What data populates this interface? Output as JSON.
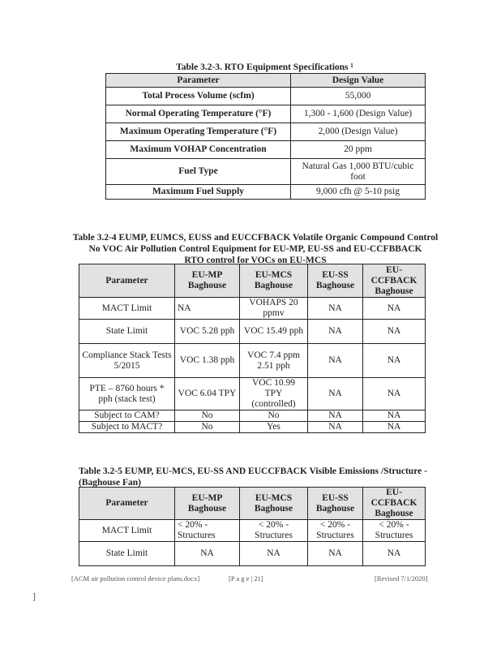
{
  "table1": {
    "caption": "Table 3.2-3.  RTO Equipment Specifications ¹",
    "headers": [
      "Parameter",
      "Design Value"
    ],
    "rows": [
      [
        "Total Process Volume (scfm)",
        "55,000"
      ],
      [
        "Normal Operating Temperature (°F)",
        "1,300 - 1,600 (Design Value)"
      ],
      [
        "Maximum Operating Temperature (°F)",
        "2,000 (Design Value)"
      ],
      [
        "Maximum VOHAP Concentration",
        "20 ppm"
      ],
      [
        "Fuel Type",
        "Natural Gas 1,000 BTU/cubic foot"
      ],
      [
        "Maximum Fuel Supply",
        "9,000 cfh @ 5-10 psig"
      ]
    ]
  },
  "table2": {
    "caption_lines": [
      "Table 3.2-4  EUMP, EUMCS, EUSS and EUCCFBACK Volatile Organic Compound Control",
      "No VOC Air Pollution Control Equipment for EU-MP, EU-SS and EU-CCFBBACK",
      "RTO control for VOCs on EU-MCS"
    ],
    "headers": [
      "Parameter",
      "EU-MP Baghouse",
      "EU-MCS Baghouse",
      "EU-SS Baghouse",
      "EU-CCFBACK Baghouse"
    ],
    "rows": [
      [
        "MACT Limit",
        "NA",
        "VOHAPS 20 ppmv",
        "NA",
        "NA"
      ],
      [
        "State Limit",
        "VOC 5.28 pph",
        "VOC 15.49 pph",
        "NA",
        "NA"
      ],
      [
        "Compliance Stack Tests 5/2015",
        "VOC 1.38 pph",
        "VOC 7.4 ppm 2.51 pph",
        "NA",
        "NA"
      ],
      [
        "PTE – 8760 hours * pph (stack test)",
        "VOC 6.04 TPY",
        "VOC 10.99 TPY (controlled)",
        "NA",
        "NA"
      ],
      [
        "Subject to CAM?",
        "No",
        "No",
        "NA",
        "NA"
      ],
      [
        "Subject to MACT?",
        "No",
        "Yes",
        "NA",
        "NA"
      ]
    ]
  },
  "table3": {
    "caption": "Table 3.2-5   EUMP, EU-MCS, EU-SS AND EUCCFBACK Visible Emissions /Structure - (Baghouse Fan)",
    "headers": [
      "Parameter",
      "EU-MP Baghouse",
      "EU-MCS Baghouse",
      "EU-SS Baghouse",
      "EU-CCFBACK Baghouse"
    ],
    "rows": [
      [
        "MACT Limit",
        "< 20% - Structures",
        "< 20% - Structures",
        "< 20% - Structures",
        "< 20% - Structures"
      ],
      [
        "State Limit",
        "NA",
        "NA",
        "NA",
        "NA"
      ]
    ]
  },
  "footer": {
    "filename": "[ACM air pollution control device plans.docx]",
    "page": "[P a g e | 21]",
    "revised": "[Revised 7/1/2020]",
    "bracket": "]"
  }
}
